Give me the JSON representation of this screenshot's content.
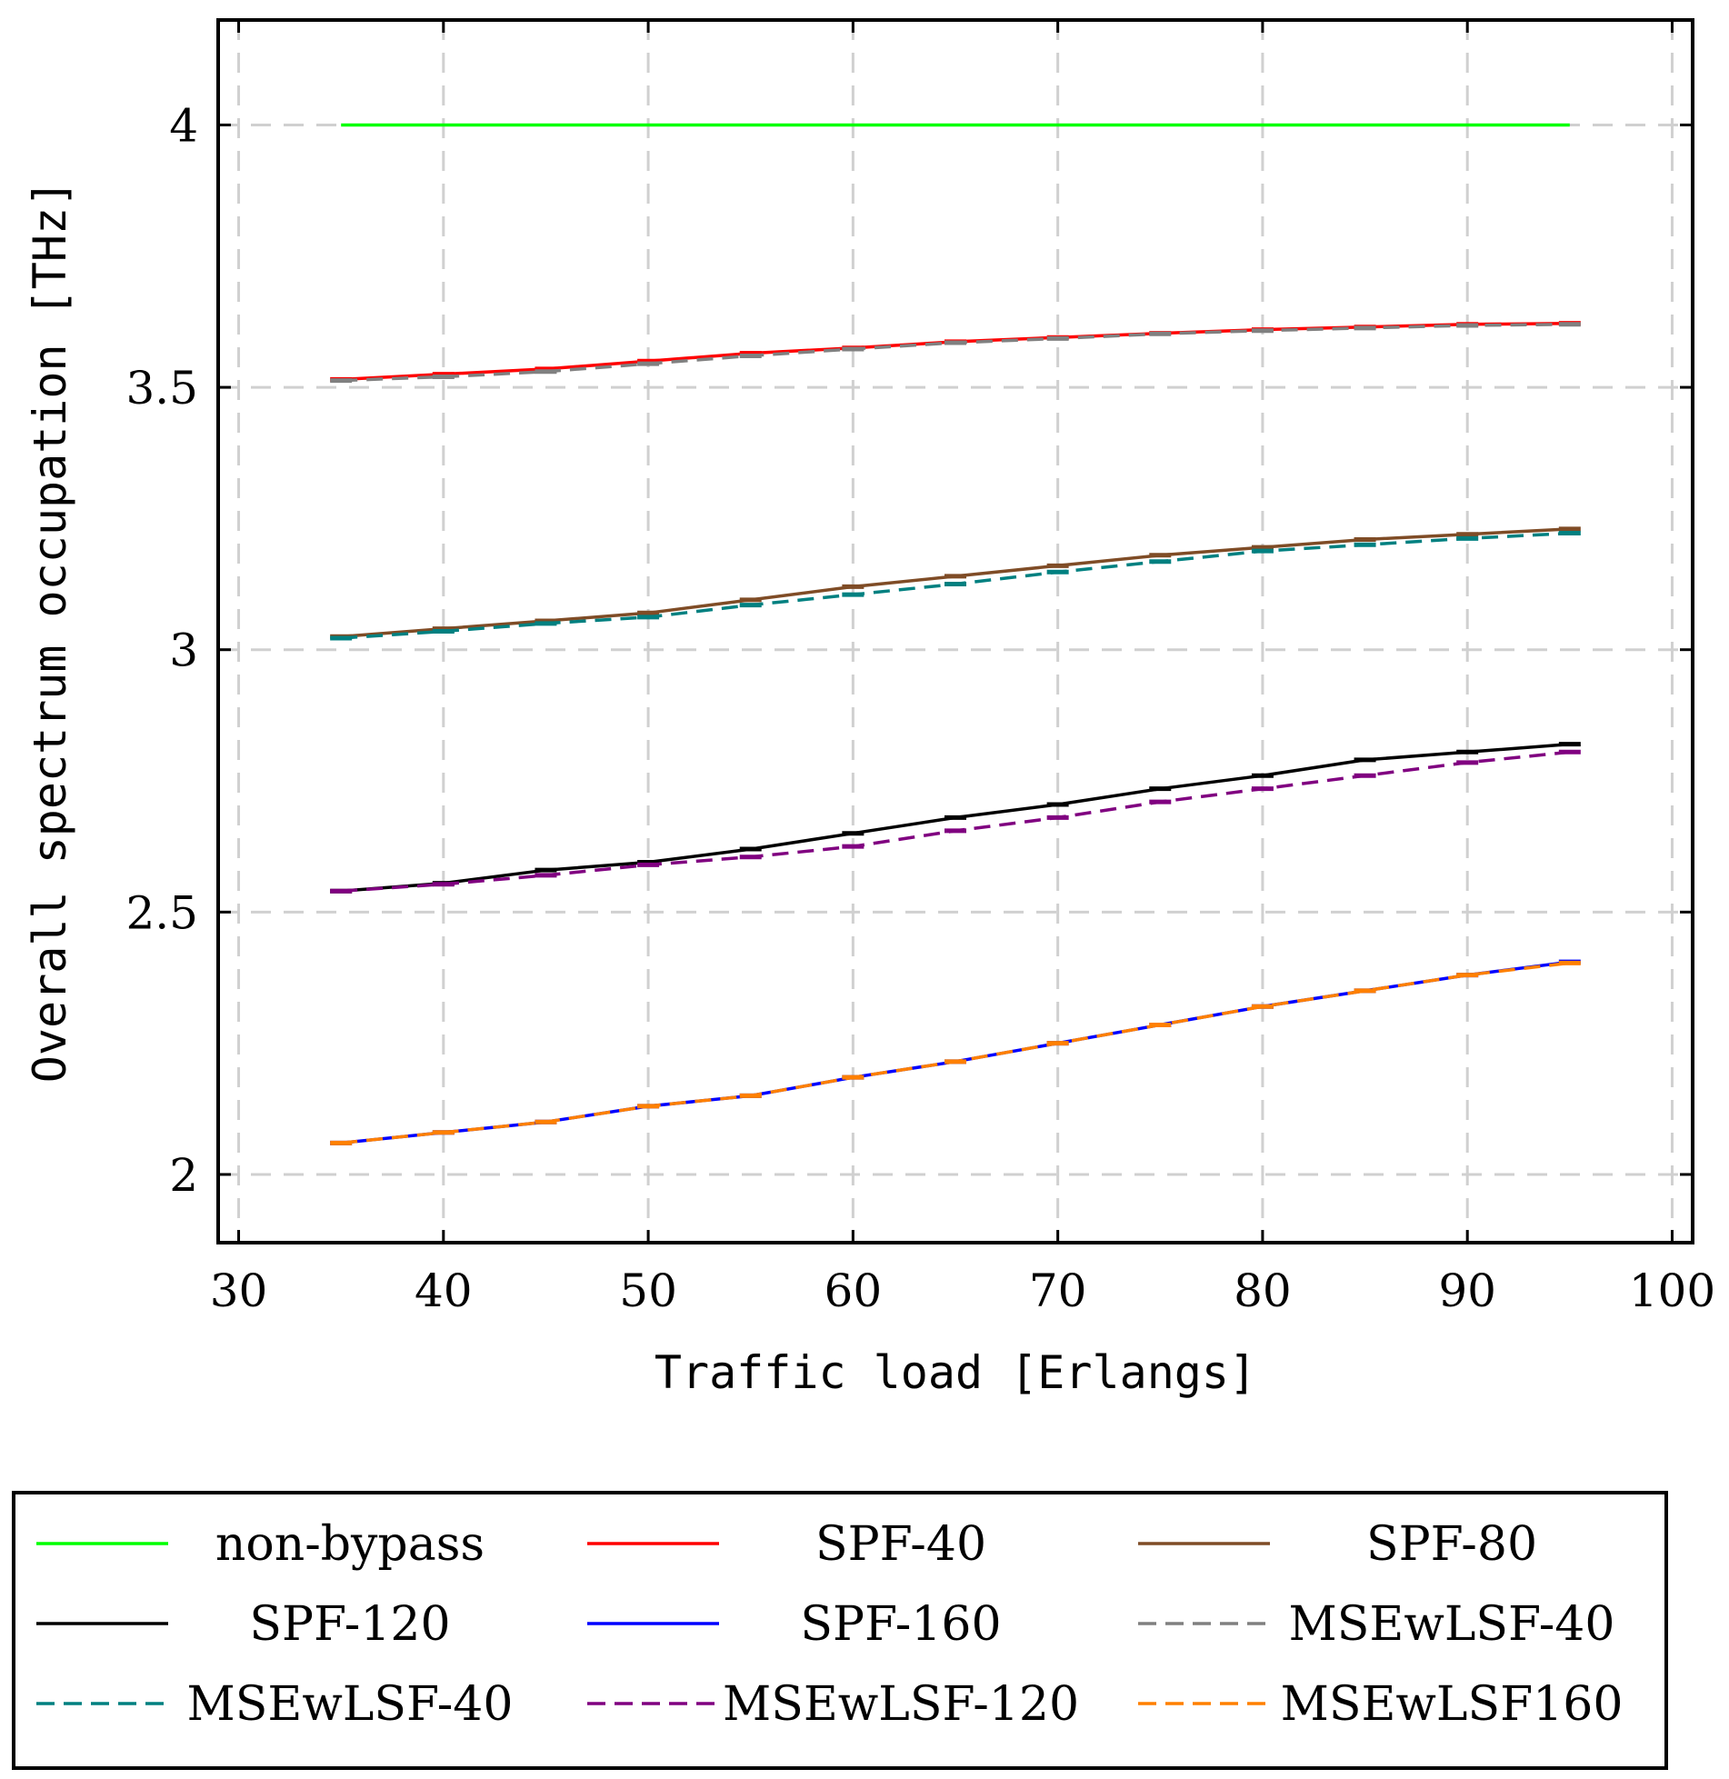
{
  "chart_data": {
    "type": "line",
    "xlabel": "Traffic load [Erlangs]",
    "ylabel": "Overall spectrum occupation [THz]",
    "xlim": [
      29,
      101
    ],
    "ylim": [
      1.87,
      4.2
    ],
    "xticks": [
      30,
      40,
      50,
      60,
      70,
      80,
      90,
      100
    ],
    "xtick_labels": [
      "30",
      "40",
      "50",
      "60",
      "70",
      "80",
      "90",
      "100"
    ],
    "yticks": [
      2,
      2.5,
      3,
      3.5,
      4
    ],
    "ytick_labels": [
      "2",
      "2.5",
      "3",
      "3.5",
      "4"
    ],
    "grid": true,
    "legend_position": "below",
    "series": [
      {
        "name": "non-bypass",
        "color": "#00ff00",
        "dash": "solid",
        "x": [
          35,
          95
        ],
        "y": [
          4.0,
          4.0
        ],
        "errorbars": false
      },
      {
        "name": "SPF-40",
        "color": "#ff0000",
        "dash": "solid",
        "x": [
          35,
          40,
          45,
          50,
          55,
          60,
          65,
          70,
          75,
          80,
          85,
          90,
          95
        ],
        "y": [
          3.515,
          3.525,
          3.535,
          3.55,
          3.565,
          3.575,
          3.587,
          3.595,
          3.603,
          3.61,
          3.615,
          3.62,
          3.622
        ],
        "errorbars": true
      },
      {
        "name": "SPF-80",
        "color": "#7f4c26",
        "dash": "solid",
        "x": [
          35,
          40,
          45,
          50,
          55,
          60,
          65,
          70,
          75,
          80,
          85,
          90,
          95
        ],
        "y": [
          3.025,
          3.04,
          3.055,
          3.07,
          3.095,
          3.12,
          3.14,
          3.16,
          3.18,
          3.195,
          3.21,
          3.22,
          3.23
        ],
        "errorbars": true
      },
      {
        "name": "SPF-120",
        "color": "#000000",
        "dash": "solid",
        "x": [
          35,
          40,
          45,
          50,
          55,
          60,
          65,
          70,
          75,
          80,
          85,
          90,
          95
        ],
        "y": [
          2.54,
          2.555,
          2.58,
          2.595,
          2.62,
          2.65,
          2.68,
          2.705,
          2.735,
          2.76,
          2.79,
          2.805,
          2.82
        ],
        "errorbars": true
      },
      {
        "name": "SPF-160",
        "color": "#0000ff",
        "dash": "solid",
        "x": [
          35,
          40,
          45,
          50,
          55,
          60,
          65,
          70,
          75,
          80,
          85,
          90,
          95
        ],
        "y": [
          2.06,
          2.08,
          2.1,
          2.13,
          2.15,
          2.185,
          2.215,
          2.25,
          2.285,
          2.32,
          2.35,
          2.38,
          2.405
        ],
        "errorbars": true
      },
      {
        "name": "MSEwLSF-40",
        "color": "#808080",
        "dash": "dashed",
        "x": [
          35,
          40,
          45,
          50,
          55,
          60,
          65,
          70,
          75,
          80,
          85,
          90,
          95
        ],
        "y": [
          3.513,
          3.52,
          3.53,
          3.545,
          3.56,
          3.573,
          3.585,
          3.593,
          3.602,
          3.608,
          3.613,
          3.618,
          3.62
        ],
        "errorbars": true
      },
      {
        "name": "MSEwLSF-40",
        "color": "#008080",
        "dash": "dashed",
        "x": [
          35,
          40,
          45,
          50,
          55,
          60,
          65,
          70,
          75,
          80,
          85,
          90,
          95
        ],
        "y": [
          3.022,
          3.035,
          3.05,
          3.062,
          3.085,
          3.105,
          3.125,
          3.148,
          3.168,
          3.188,
          3.2,
          3.212,
          3.222
        ],
        "errorbars": true
      },
      {
        "name": "MSEwLSF-120",
        "color": "#800080",
        "dash": "dashed",
        "x": [
          35,
          40,
          45,
          50,
          55,
          60,
          65,
          70,
          75,
          80,
          85,
          90,
          95
        ],
        "y": [
          2.54,
          2.553,
          2.57,
          2.59,
          2.605,
          2.625,
          2.655,
          2.68,
          2.71,
          2.735,
          2.76,
          2.785,
          2.805
        ],
        "errorbars": true
      },
      {
        "name": "MSEwLSF160",
        "color": "#ff8000",
        "dash": "dashed",
        "x": [
          35,
          40,
          45,
          50,
          55,
          60,
          65,
          70,
          75,
          80,
          85,
          90,
          95
        ],
        "y": [
          2.06,
          2.08,
          2.1,
          2.13,
          2.15,
          2.185,
          2.215,
          2.25,
          2.285,
          2.32,
          2.35,
          2.38,
          2.403
        ],
        "errorbars": true
      }
    ]
  }
}
